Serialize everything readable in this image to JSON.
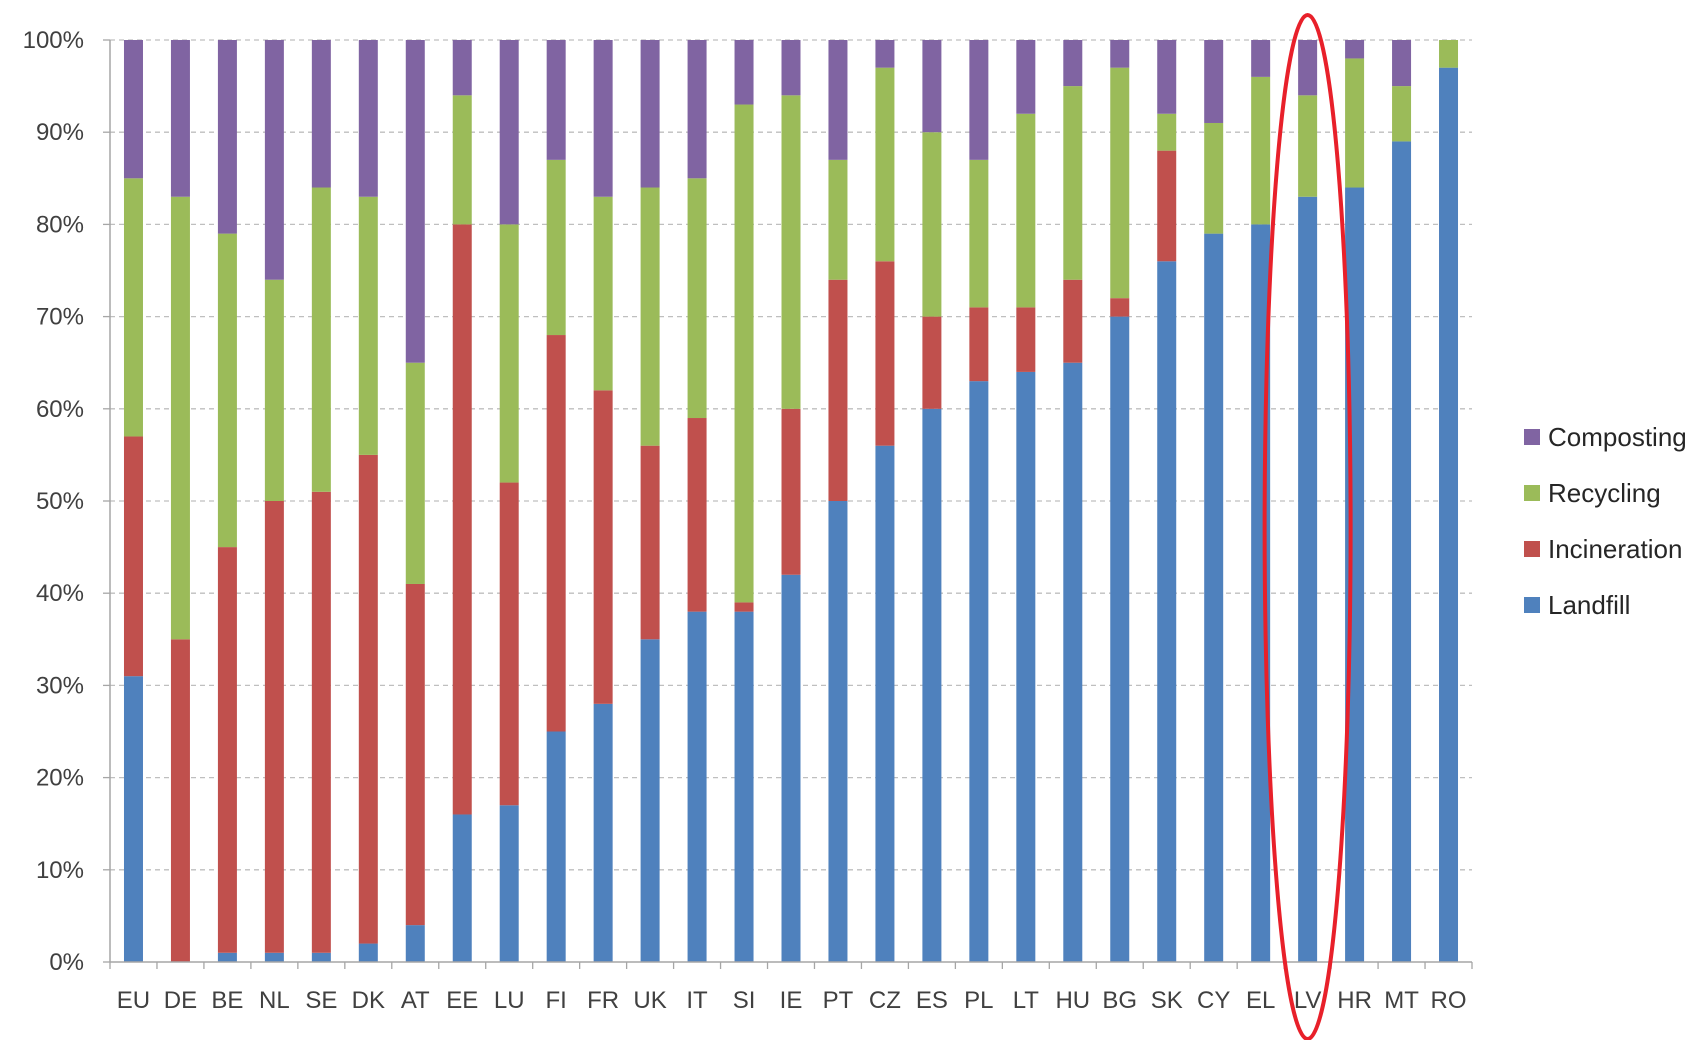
{
  "chart_data": {
    "type": "bar",
    "stacked": true,
    "normalized": true,
    "title": "",
    "xlabel": "",
    "ylabel": "",
    "ylim": [
      0,
      100
    ],
    "y_ticks": [
      "0%",
      "10%",
      "20%",
      "30%",
      "40%",
      "50%",
      "60%",
      "70%",
      "80%",
      "90%",
      "100%"
    ],
    "grid": "horizontal dashed",
    "legend_position": "right",
    "categories": [
      "EU",
      "DE",
      "BE",
      "NL",
      "SE",
      "DK",
      "AT",
      "EE",
      "LU",
      "FI",
      "FR",
      "UK",
      "IT",
      "SI",
      "IE",
      "PT",
      "CZ",
      "ES",
      "PL",
      "LT",
      "HU",
      "BG",
      "SK",
      "CY",
      "EL",
      "LV",
      "HR",
      "MT",
      "RO"
    ],
    "series": [
      {
        "name": "Landfill",
        "color": "#4F81BD",
        "values": [
          31,
          0,
          1,
          1,
          1,
          2,
          4,
          16,
          17,
          25,
          28,
          35,
          38,
          38,
          42,
          50,
          56,
          60,
          63,
          64,
          65,
          70,
          76,
          79,
          80,
          83,
          84,
          89,
          97
        ]
      },
      {
        "name": "Incineration",
        "color": "#C0504D",
        "values": [
          26,
          35,
          44,
          49,
          50,
          53,
          37,
          64,
          35,
          43,
          34,
          21,
          21,
          1,
          18,
          24,
          20,
          10,
          8,
          7,
          9,
          2,
          12,
          0,
          0,
          0,
          0,
          0,
          0
        ]
      },
      {
        "name": "Recycling",
        "color": "#9BBB59",
        "values": [
          28,
          48,
          34,
          24,
          33,
          28,
          24,
          14,
          28,
          19,
          21,
          28,
          26,
          54,
          34,
          13,
          21,
          20,
          16,
          21,
          21,
          25,
          4,
          12,
          16,
          11,
          14,
          6,
          3
        ]
      },
      {
        "name": "Composting",
        "color": "#8064A2",
        "values": [
          15,
          17,
          21,
          26,
          16,
          17,
          35,
          6,
          20,
          13,
          17,
          16,
          15,
          7,
          6,
          13,
          3,
          10,
          13,
          8,
          5,
          3,
          8,
          9,
          4,
          6,
          2,
          5,
          0
        ]
      }
    ],
    "legend_order": [
      "Composting",
      "Recycling",
      "Incineration",
      "Landfill"
    ],
    "highlight": {
      "category": "LV",
      "shape": "ellipse",
      "color": "#E8202A"
    },
    "colors": {
      "axis": "#A6A6A6",
      "grid": "#BFBFBF",
      "text": "#404040"
    }
  }
}
